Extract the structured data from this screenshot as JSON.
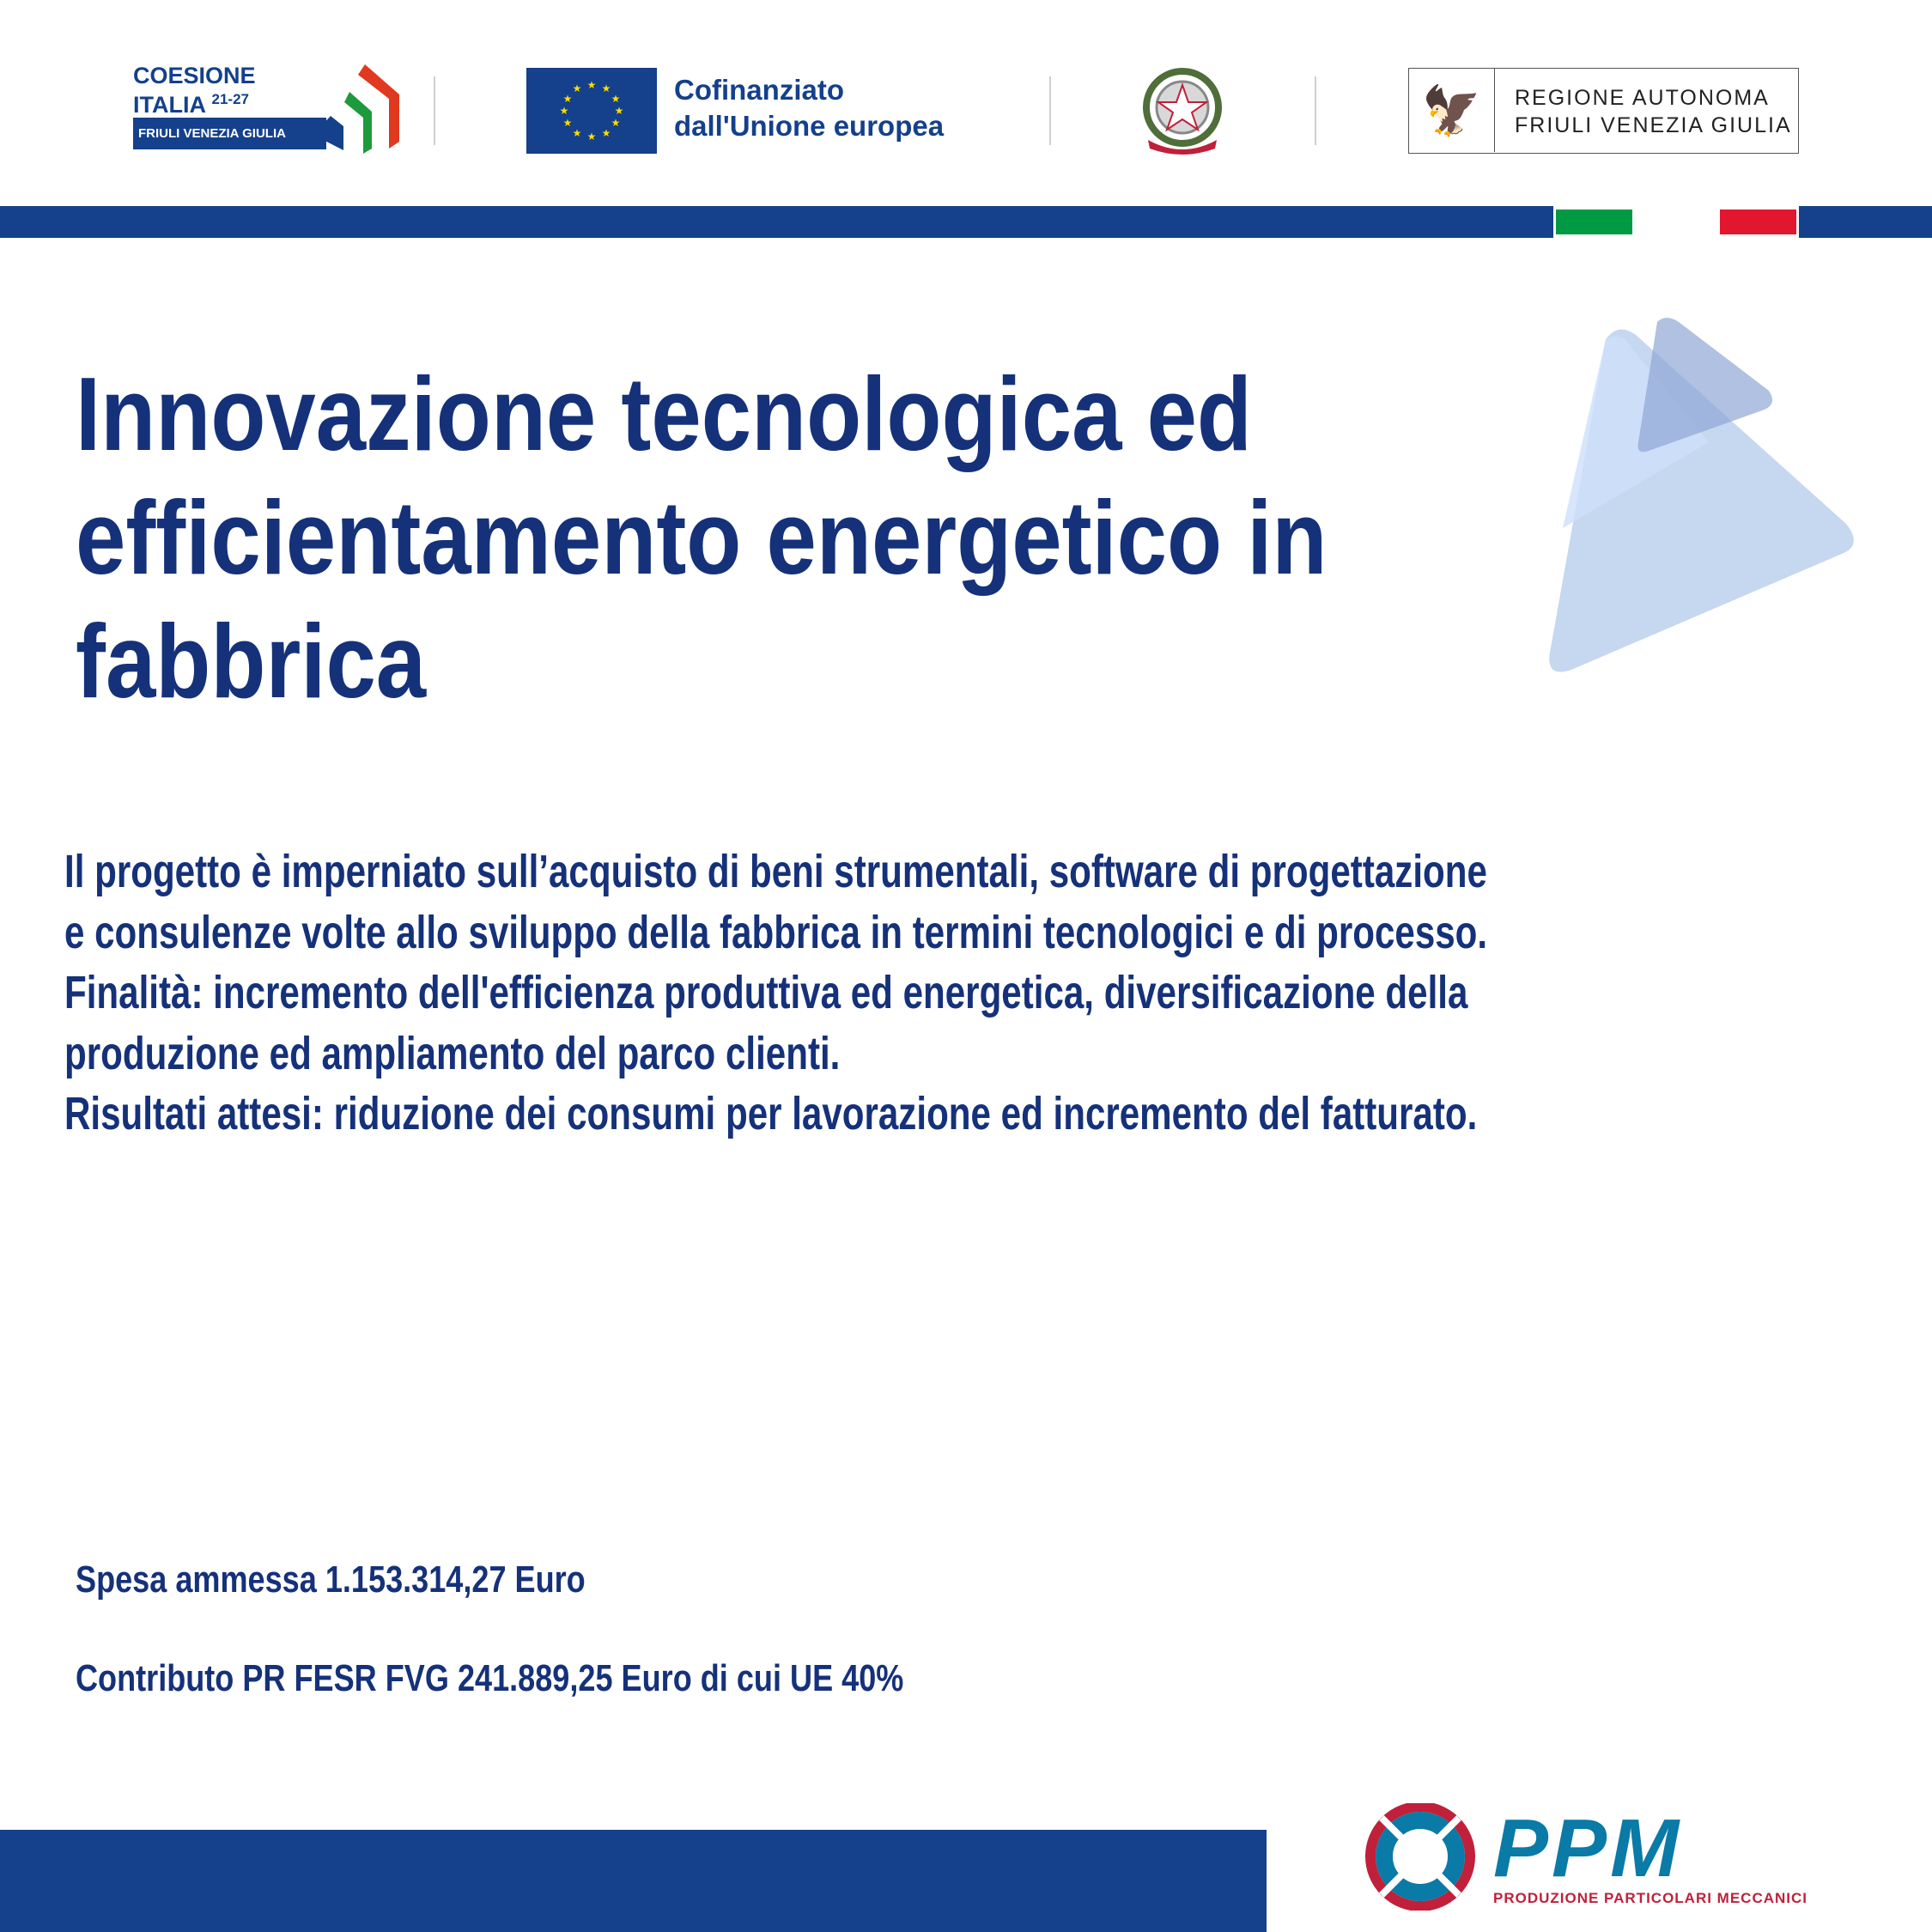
{
  "header": {
    "coesione": {
      "line1": "COESIONE",
      "line2": "ITALIA",
      "years": "21-27",
      "region": "FRIULI VENEZIA GIULIA"
    },
    "eu": {
      "line1": "Cofinanziato",
      "line2": "dall'Unione europea"
    },
    "emblem": {
      "text": "REPUBBLICA ITALIANA"
    },
    "regione": {
      "line1": "REGIONE AUTONOMA",
      "line2": "FRIULI VENEZIA GIULIA"
    }
  },
  "colors": {
    "primary": "#14408c",
    "green": "#009a44",
    "red": "#e3162f",
    "ppm_blue": "#0a7aa6",
    "ppm_red": "#c0203a"
  },
  "title": [
    "Innovazione tecnologica ed",
    "efficientamento energetico in",
    "fabbrica"
  ],
  "description": [
    "Il progetto è imperniato sull’acquisto di beni strumentali, software di progettazione",
    "e consulenze volte allo sviluppo della fabbrica in termini tecnologici e di processo.",
    "Finalità: incremento dell'efficienza produttiva ed energetica, diversificazione della",
    "produzione ed ampliamento del parco clienti.",
    "Risultati attesi: riduzione dei consumi per lavorazione ed incremento del fatturato."
  ],
  "funding": {
    "spesa": "Spesa ammessa 1.153.314,27 Euro",
    "contributo": "Contributo PR FESR FVG 241.889,25 Euro di cui UE 40%"
  },
  "footer": {
    "logo": "PPM",
    "tagline": "PRODUZIONE PARTICOLARI MECCANICI"
  }
}
